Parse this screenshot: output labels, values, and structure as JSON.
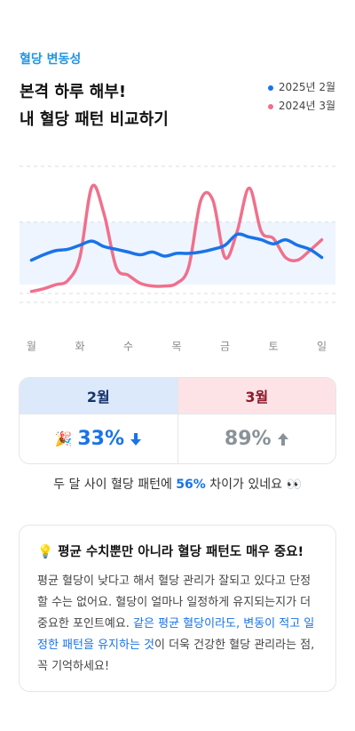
{
  "header": {
    "label": "혈당 변동성",
    "title_lines": [
      "본격 하루 해부!",
      "내 혈당 패턴 비교하기"
    ]
  },
  "chart_data": {
    "type": "line",
    "x": [
      0,
      0.25,
      0.5,
      0.75,
      1,
      1.25,
      1.5,
      1.75,
      2,
      2.25,
      2.5,
      2.75,
      3,
      3.25,
      3.5,
      3.75,
      4,
      4.25,
      4.5,
      4.75,
      5,
      5.25,
      5.5,
      5.75,
      6
    ],
    "series": [
      {
        "name": "2025년 2월",
        "color": "#1a73e8",
        "values": [
          31,
          35,
          38,
          39,
          42,
          45,
          41,
          39,
          37,
          35,
          37,
          34,
          36,
          36,
          37,
          39,
          42,
          50,
          48,
          46,
          43,
          46,
          42,
          39,
          33
        ]
      },
      {
        "name": "2024년 3월",
        "color": "#f0708c",
        "values": [
          8,
          10,
          13,
          16,
          33,
          85,
          65,
          26,
          20,
          14,
          12,
          12,
          14,
          26,
          75,
          75,
          33,
          52,
          84,
          52,
          47,
          33,
          31,
          38,
          46
        ]
      }
    ],
    "xlim": [
      -0.1,
      6.1
    ],
    "ylim": [
      0,
      100
    ],
    "xticks": [
      {
        "value": 0,
        "label": "월"
      },
      {
        "value": 1,
        "label": "화"
      },
      {
        "value": 2,
        "label": "수"
      },
      {
        "value": 3,
        "label": "목"
      },
      {
        "value": 4,
        "label": "금"
      },
      {
        "value": 5,
        "label": "토"
      },
      {
        "value": 6,
        "label": "일"
      }
    ],
    "band": [
      13,
      59
    ],
    "band_color": "#eef5ff",
    "grid": true
  },
  "comparison": [
    {
      "month": "2월",
      "icon": "🎉",
      "value": "33%"
    },
    {
      "month": "3월",
      "value": "89%"
    }
  ],
  "summary": [
    "두 달 사이 혈당 패턴에 ",
    "56%",
    " 차이가 있네요 👀"
  ],
  "tip": {
    "title": "💡 평균 수치뿐만 아니라 혈당 패턴도 매우 중요!",
    "body": [
      "평균 혈당이 낮다고 해서 혈당 관리가 잘되고 있다고 단정할 수는 없어요. 혈당이 얼마나 일정하게 유지되는지가 더 중요한 포인트예요. ",
      "같은 평균 혈당이라도, 변동이 적고 일정한 패턴을 유지하는 것",
      "이 더욱 건강한 혈당 관리라는 점, 꼭 기억하세요!"
    ]
  }
}
